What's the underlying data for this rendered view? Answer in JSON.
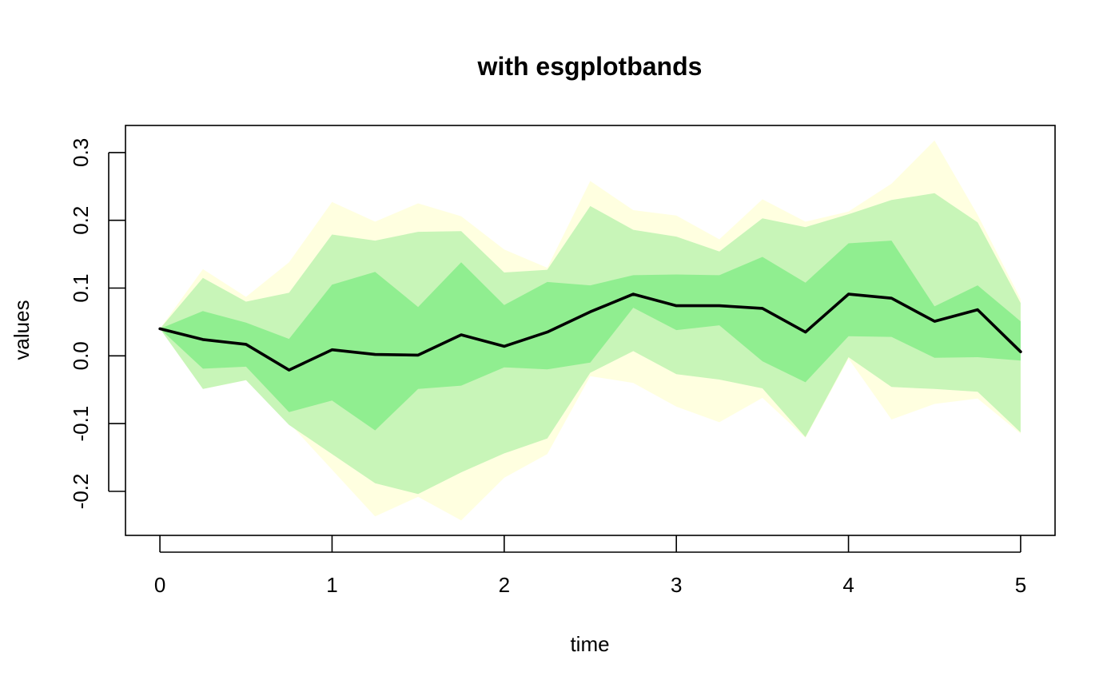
{
  "chart_data": {
    "type": "area",
    "title": "with esgplotbands",
    "xlabel": "time",
    "ylabel": "values",
    "xlim": [
      -0.2,
      5.2
    ],
    "ylim": [
      -0.265,
      0.34
    ],
    "x_ticks": [
      {
        "value": 0,
        "label": "0"
      },
      {
        "value": 1,
        "label": "1"
      },
      {
        "value": 2,
        "label": "2"
      },
      {
        "value": 3,
        "label": "3"
      },
      {
        "value": 4,
        "label": "4"
      },
      {
        "value": 5,
        "label": "5"
      }
    ],
    "y_ticks": [
      {
        "value": -0.2,
        "label": "-0.2"
      },
      {
        "value": -0.1,
        "label": "-0.1"
      },
      {
        "value": 0.0,
        "label": "0.0"
      },
      {
        "value": 0.1,
        "label": "0.1"
      },
      {
        "value": 0.2,
        "label": "0.2"
      },
      {
        "value": 0.3,
        "label": "0.3"
      }
    ],
    "x": [
      0,
      0.25,
      0.5,
      0.75,
      1,
      1.25,
      1.5,
      1.75,
      2,
      2.25,
      2.5,
      2.75,
      3,
      3.25,
      3.5,
      3.75,
      4,
      4.25,
      4.5,
      4.75,
      5
    ],
    "bands": [
      {
        "color": "#ffffe0",
        "upper": [
          0.04,
          0.128,
          0.087,
          0.138,
          0.227,
          0.198,
          0.225,
          0.206,
          0.157,
          0.13,
          0.258,
          0.215,
          0.207,
          0.172,
          0.231,
          0.198,
          0.213,
          0.254,
          0.318,
          0.208,
          0.084
        ],
        "lower": [
          0.04,
          -0.049,
          -0.036,
          -0.099,
          -0.168,
          -0.237,
          -0.208,
          -0.243,
          -0.18,
          -0.145,
          -0.03,
          -0.04,
          -0.075,
          -0.098,
          -0.062,
          -0.121,
          -0.004,
          -0.094,
          -0.071,
          -0.063,
          -0.115
        ]
      },
      {
        "color": "#c8f5b8",
        "upper": [
          0.04,
          0.115,
          0.08,
          0.093,
          0.179,
          0.17,
          0.183,
          0.184,
          0.123,
          0.127,
          0.221,
          0.186,
          0.176,
          0.154,
          0.203,
          0.19,
          0.209,
          0.23,
          0.24,
          0.197,
          0.078
        ],
        "lower": [
          0.04,
          -0.049,
          -0.036,
          -0.102,
          -0.145,
          -0.188,
          -0.204,
          -0.172,
          -0.144,
          -0.122,
          -0.025,
          0.007,
          -0.027,
          -0.035,
          -0.048,
          -0.12,
          -0.002,
          -0.046,
          -0.049,
          -0.053,
          -0.113
        ]
      },
      {
        "color": "#90ee90",
        "upper": [
          0.04,
          0.066,
          0.049,
          0.025,
          0.105,
          0.124,
          0.072,
          0.138,
          0.075,
          0.109,
          0.104,
          0.119,
          0.12,
          0.119,
          0.146,
          0.108,
          0.166,
          0.17,
          0.073,
          0.104,
          0.051
        ],
        "lower": [
          0.04,
          -0.019,
          -0.016,
          -0.083,
          -0.066,
          -0.11,
          -0.049,
          -0.044,
          -0.017,
          -0.02,
          -0.01,
          0.071,
          0.038,
          0.045,
          -0.008,
          -0.039,
          0.029,
          0.028,
          -0.003,
          -0.002,
          -0.007
        ]
      }
    ],
    "series": [
      {
        "color": "#000000",
        "values": [
          0.04,
          0.024,
          0.017,
          -0.021,
          0.009,
          0.002,
          0.001,
          0.031,
          0.014,
          0.035,
          0.065,
          0.091,
          0.074,
          0.074,
          0.07,
          0.035,
          0.091,
          0.085,
          0.051,
          0.068,
          0.006
        ]
      }
    ],
    "grid": false,
    "legend": "none"
  }
}
